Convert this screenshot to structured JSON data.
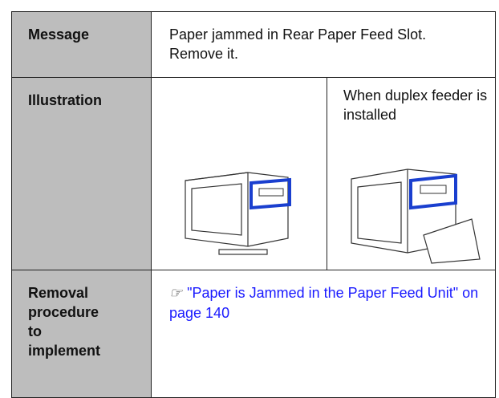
{
  "table": {
    "rows": [
      [
        "Message",
        "Paper jammed in Rear Paper Feed Slot. Remove it."
      ],
      [
        "Illustration",
        "When duplex feeder is installed"
      ],
      [
        "Removal procedure to implement",
        "\"Paper is Jammed in the Paper Feed Unit\" on page 140"
      ]
    ]
  }
}
